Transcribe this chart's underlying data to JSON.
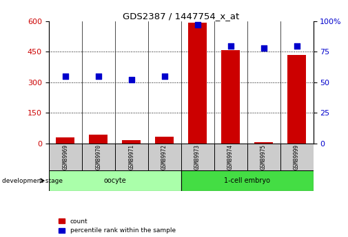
{
  "title": "GDS2387 / 1447754_x_at",
  "samples": [
    "GSM89969",
    "GSM89970",
    "GSM89971",
    "GSM89972",
    "GSM89973",
    "GSM89974",
    "GSM89975",
    "GSM89999"
  ],
  "counts": [
    30,
    42,
    15,
    32,
    595,
    460,
    5,
    435
  ],
  "percentile_ranks": [
    55,
    55,
    52,
    55,
    97,
    80,
    78,
    80
  ],
  "groups": [
    {
      "label": "oocyte",
      "indices": [
        0,
        1,
        2,
        3
      ],
      "color": "#aaffaa"
    },
    {
      "label": "1-cell embryo",
      "indices": [
        4,
        5,
        6,
        7
      ],
      "color": "#44dd44"
    }
  ],
  "left_ylim": [
    0,
    600
  ],
  "left_yticks": [
    0,
    150,
    300,
    450,
    600
  ],
  "right_ylim": [
    0,
    100
  ],
  "right_yticks": [
    0,
    25,
    50,
    75,
    100
  ],
  "bar_color": "#CC0000",
  "dot_color": "#0000CC",
  "bar_width": 0.55,
  "grid_color": "black",
  "left_axis_color": "#CC0000",
  "right_axis_color": "#0000CC",
  "dev_stage_label": "development stage",
  "legend_count_label": "count",
  "legend_pct_label": "percentile rank within the sample",
  "sample_box_color": "#cccccc",
  "group_border_color": "#000000"
}
